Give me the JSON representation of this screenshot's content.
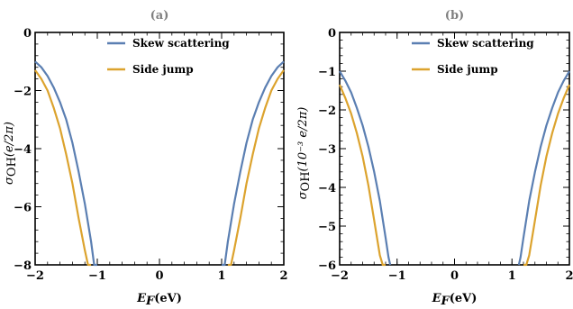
{
  "chart_data": [
    {
      "type": "line",
      "title": "(a)",
      "xlabel_main": "E",
      "xlabel_sub": "F",
      "xlabel_unit": "(eV)",
      "ylabel_main": "σ",
      "ylabel_sub": "OH",
      "ylabel_unit": "(e/2π)",
      "xlim": [
        -2,
        2
      ],
      "ylim": [
        -8,
        0
      ],
      "xticks": [
        "−2",
        "−1",
        "0",
        "1",
        "2"
      ],
      "yticks": [
        "0",
        "−2",
        "−4",
        "−6",
        "−8"
      ],
      "series": [
        {
          "name": "Skew scattering",
          "color": "#5b7fb2",
          "x": [
            -2.0,
            -1.9,
            -1.8,
            -1.7,
            -1.6,
            -1.5,
            -1.4,
            -1.3,
            -1.2,
            -1.1,
            -1.05,
            -1.0,
            1.0,
            1.05,
            1.1,
            1.2,
            1.3,
            1.4,
            1.5,
            1.6,
            1.7,
            1.8,
            1.9,
            2.0
          ],
          "y": [
            -1.0,
            -1.2,
            -1.5,
            -1.9,
            -2.4,
            -3.0,
            -3.8,
            -4.8,
            -5.9,
            -7.2,
            -8.0,
            -8.0,
            -8.0,
            -8.0,
            -7.2,
            -5.9,
            -4.8,
            -3.8,
            -3.0,
            -2.4,
            -1.9,
            -1.5,
            -1.2,
            -1.0
          ]
        },
        {
          "name": "Side jump",
          "color": "#dca32e",
          "x": [
            -2.0,
            -1.9,
            -1.8,
            -1.7,
            -1.6,
            -1.5,
            -1.4,
            -1.3,
            -1.2,
            -1.15,
            -1.1,
            1.1,
            1.15,
            1.2,
            1.3,
            1.4,
            1.5,
            1.6,
            1.7,
            1.8,
            1.9,
            2.0
          ],
          "y": [
            -1.3,
            -1.6,
            -2.0,
            -2.6,
            -3.3,
            -4.2,
            -5.2,
            -6.4,
            -7.5,
            -8.0,
            -8.0,
            -8.0,
            -8.0,
            -7.5,
            -6.4,
            -5.2,
            -4.2,
            -3.3,
            -2.6,
            -2.0,
            -1.6,
            -1.3
          ]
        }
      ],
      "legend_position": "top-center"
    },
    {
      "type": "line",
      "title": "(b)",
      "xlabel_main": "E",
      "xlabel_sub": "F",
      "xlabel_unit": "(eV)",
      "ylabel_main": "σ",
      "ylabel_sub": "OH",
      "ylabel_unit": "(10⁻³ e/2π)",
      "xlim": [
        -2,
        2
      ],
      "ylim": [
        -6,
        0
      ],
      "xticks": [
        "−2",
        "−1",
        "0",
        "1",
        "2"
      ],
      "yticks": [
        "0",
        "−1",
        "−2",
        "−3",
        "−4",
        "−5",
        "−6"
      ],
      "series": [
        {
          "name": "Skew scattering",
          "color": "#5b7fb2",
          "x": [
            -2.0,
            -1.9,
            -1.8,
            -1.7,
            -1.6,
            -1.5,
            -1.4,
            -1.3,
            -1.2,
            -1.15,
            -1.12,
            1.12,
            1.15,
            1.2,
            1.3,
            1.4,
            1.5,
            1.6,
            1.7,
            1.8,
            1.9,
            2.0
          ],
          "y": [
            -1.0,
            -1.25,
            -1.55,
            -1.95,
            -2.4,
            -2.95,
            -3.6,
            -4.35,
            -5.3,
            -5.8,
            -6.0,
            -6.0,
            -5.8,
            -5.3,
            -4.35,
            -3.6,
            -2.95,
            -2.4,
            -1.95,
            -1.55,
            -1.25,
            -1.0
          ]
        },
        {
          "name": "Side jump",
          "color": "#dca32e",
          "x": [
            -2.0,
            -1.9,
            -1.8,
            -1.7,
            -1.6,
            -1.5,
            -1.4,
            -1.3,
            -1.25,
            -1.2,
            1.2,
            1.25,
            1.3,
            1.4,
            1.5,
            1.6,
            1.7,
            1.8,
            1.9,
            2.0
          ],
          "y": [
            -1.35,
            -1.7,
            -2.1,
            -2.6,
            -3.2,
            -3.95,
            -4.85,
            -5.75,
            -6.0,
            -6.0,
            -6.0,
            -6.0,
            -5.75,
            -4.85,
            -3.95,
            -3.2,
            -2.6,
            -2.1,
            -1.7,
            -1.35
          ]
        }
      ],
      "legend_position": "top-center"
    }
  ]
}
